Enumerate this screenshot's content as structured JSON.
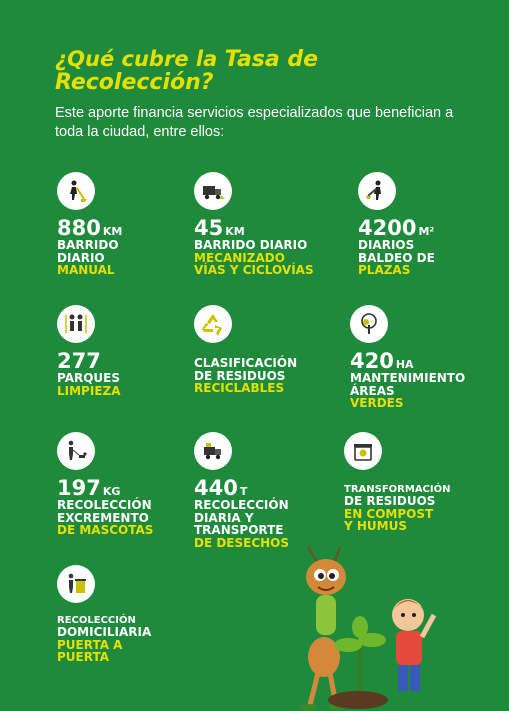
{
  "header": {
    "title_line1": "¿Qué cubre la ",
    "title_line1_strong": "Tasa de",
    "title_line2": "Recolección?",
    "subtitle": "Este aporte financia servicios especializados que benefician a toda la ciudad, entre ellos:"
  },
  "colors": {
    "background": "#1f8a3c",
    "accent": "#e4e000",
    "text": "#ffffff"
  },
  "items": [
    {
      "icon": "sweeper-icon",
      "number": "880",
      "unit": "km",
      "white": [
        "BARRIDO",
        "DIARIO"
      ],
      "yellow": [
        "MANUAL"
      ]
    },
    {
      "icon": "street-sweeper-truck-icon",
      "number": "45",
      "unit": "km",
      "white": [
        "BARRIDO DIARIO"
      ],
      "yellow": [
        "MECANIZADO",
        "VÍAS Y CICLOVÍAS"
      ]
    },
    {
      "icon": "bucket-cleaning-icon",
      "number": "4200",
      "unit": "m²",
      "white": [
        "DIARIOS",
        "BALDEO DE"
      ],
      "yellow": [
        "PLAZAS"
      ]
    },
    {
      "icon": "people-park-icon",
      "number": "277",
      "unit": "",
      "white": [
        "PARQUES"
      ],
      "yellow": [
        "LIMPIEZA"
      ]
    },
    {
      "icon": "recycle-icon",
      "number": "",
      "unit": "",
      "white": [
        "CLASIFICACIÓN",
        "DE RESIDUOS"
      ],
      "yellow": [
        "RECICLABLES"
      ]
    },
    {
      "icon": "tree-icon",
      "number": "420",
      "unit": "HA",
      "white": [
        "MANTENIMIENTO",
        "ÁREAS"
      ],
      "yellow": [
        "VERDES"
      ]
    },
    {
      "icon": "dog-walking-icon",
      "number": "197",
      "unit": "KG",
      "white": [
        "RECOLECCIÓN",
        "EXCREMENTO"
      ],
      "yellow": [
        "DE MASCOTAS"
      ]
    },
    {
      "icon": "garbage-truck-icon",
      "number": "440",
      "unit": "t",
      "white": [
        "RECOLECCIÓN",
        "DIARIA Y",
        "TRANSPORTE"
      ],
      "yellow": [
        "DE DESECHOS"
      ]
    },
    {
      "icon": "compost-bin-icon",
      "number": "",
      "unit": "",
      "white_small": [
        "TRANSFORMACIÓN"
      ],
      "white": [
        "DE RESIDUOS"
      ],
      "yellow": [
        "EN COMPOST",
        "Y HUMUS"
      ]
    },
    {
      "icon": "waste-bin-icon",
      "number": "",
      "unit": "",
      "white_small": [
        "RECOLECCIÓN"
      ],
      "white": [
        "DOMICILIARIA"
      ],
      "yellow": [
        "PUERTA A",
        "PUERTA"
      ]
    }
  ]
}
